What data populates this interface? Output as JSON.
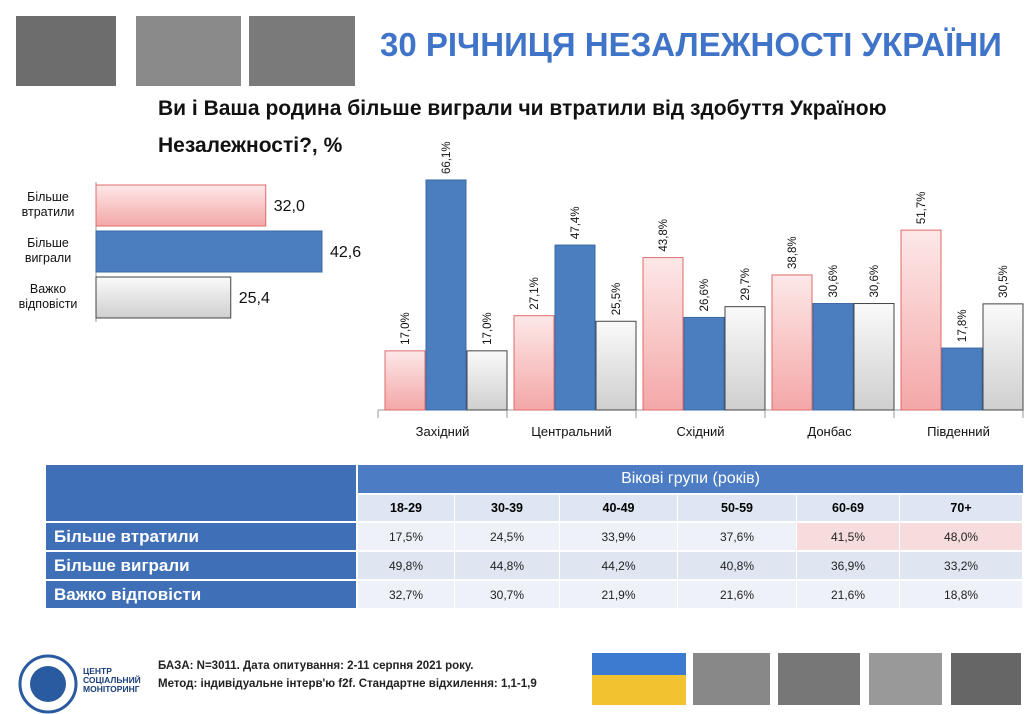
{
  "header": {
    "title": "30 РІЧНИЦЯ НЕЗАЛЕЖНОСТІ УКРАЇНИ",
    "question": "Ви і Ваша родина більше виграли чи втратили від здобуття Україною Незалежності?, %"
  },
  "chart_data": [
    {
      "type": "hbar",
      "categories": [
        "Більше втратили",
        "Більше виграли",
        "Важко відповісти"
      ],
      "values": [
        32.0,
        42.6,
        25.4
      ],
      "value_labels": [
        "32,0",
        "42,6",
        "25,4"
      ],
      "colors": [
        "#f7b9b9",
        "#4a7ebf",
        "#e3e3e3"
      ]
    },
    {
      "type": "bar",
      "categories": [
        "Західний",
        "Центральний",
        "Східний",
        "Донбас",
        "Південний"
      ],
      "series": [
        {
          "color": "#f7b9b9",
          "values": [
            17.0,
            27.1,
            43.8,
            38.8,
            51.7
          ],
          "value_labels": [
            "17,0%",
            "27,1%",
            "43,8%",
            "38,8%",
            "51,7%"
          ]
        },
        {
          "color": "#4a7ebf",
          "values": [
            66.1,
            47.4,
            26.6,
            30.6,
            17.8
          ],
          "value_labels": [
            "66,1%",
            "47,4%",
            "26,6%",
            "30,6%",
            "17,8%"
          ]
        },
        {
          "color": "#e3e3e3",
          "values": [
            17.0,
            25.5,
            29.7,
            30.6,
            30.5
          ],
          "value_labels": [
            "17,0%",
            "25,5%",
            "29,7%",
            "30,6%",
            "30,5%"
          ]
        }
      ]
    }
  ],
  "table": {
    "group_header": "Вікові групи (років)",
    "columns": [
      "18-29",
      "30-39",
      "40-49",
      "50-59",
      "60-69",
      "70+"
    ],
    "rows": [
      {
        "label": "Більше втратили",
        "cells": [
          "17,5%",
          "24,5%",
          "33,9%",
          "37,6%",
          "41,5%",
          "48,0%"
        ]
      },
      {
        "label": "Більше виграли",
        "cells": [
          "49,8%",
          "44,8%",
          "44,2%",
          "40,8%",
          "36,9%",
          "33,2%"
        ]
      },
      {
        "label": "Важко відповісти",
        "cells": [
          "32,7%",
          "30,7%",
          "21,9%",
          "21,6%",
          "21,6%",
          "18,8%"
        ]
      }
    ]
  },
  "footer": {
    "base": "БАЗА: N=3011.  Дата опитування: 2-11 серпня 2021 року.",
    "method": "Метод: індивідуальне інтерв'ю f2f. Стандартне відхилення: 1,1-1,9",
    "logo": [
      "ЦЕНТР",
      "СОЦІАЛЬНИЙ",
      "МОНІТОРИНГ"
    ]
  }
}
